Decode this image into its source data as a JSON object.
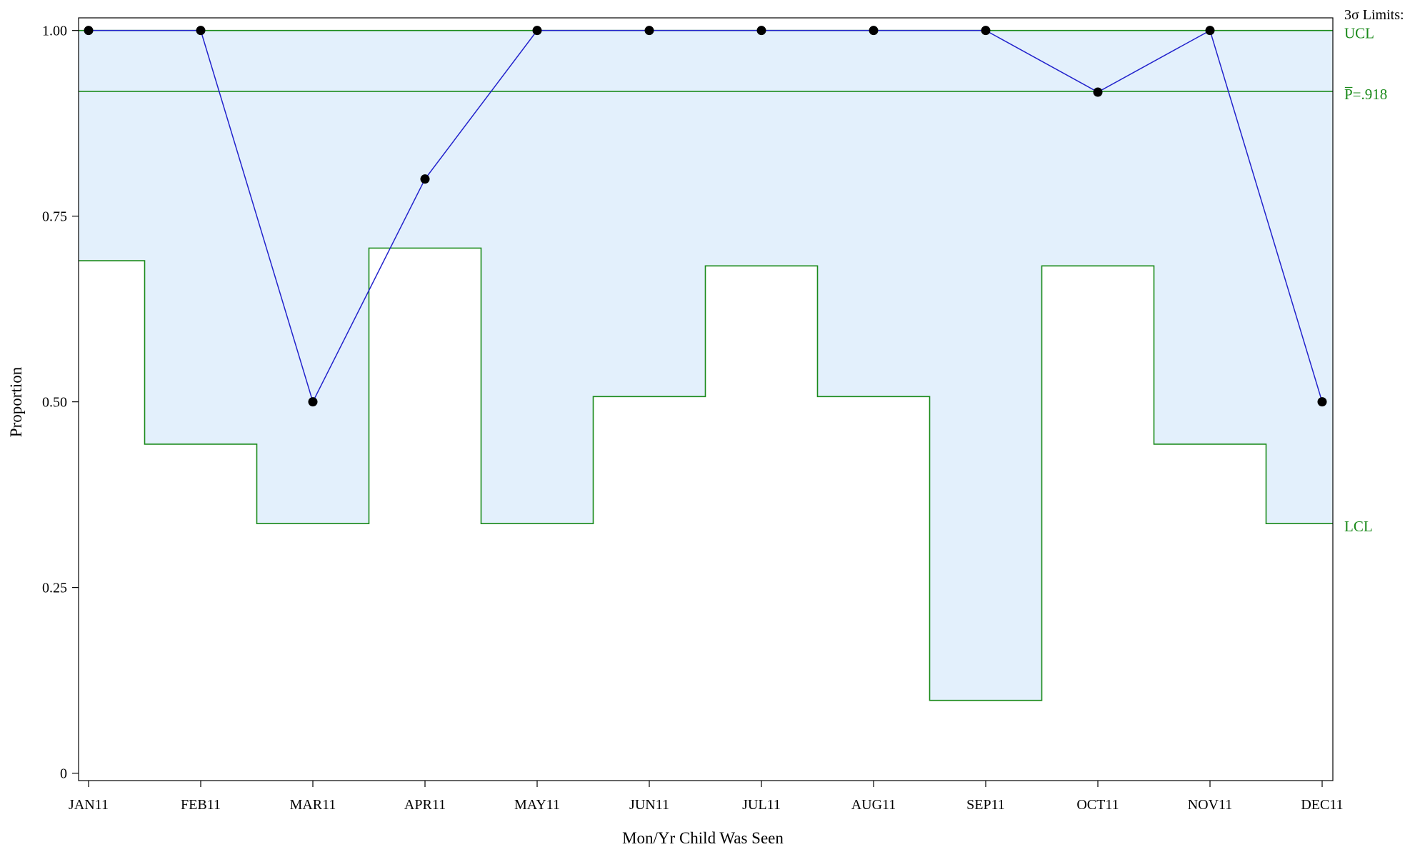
{
  "chart_data": {
    "type": "line",
    "subtype": "p-chart",
    "title": "",
    "xlabel": "Mon/Yr Child Was Seen",
    "ylabel": "Proportion",
    "categories": [
      "JAN11",
      "FEB11",
      "MAR11",
      "APR11",
      "MAY11",
      "JUN11",
      "JUL11",
      "AUG11",
      "SEP11",
      "OCT11",
      "NOV11",
      "DEC11"
    ],
    "series": [
      {
        "name": "",
        "values": [
          1.0,
          1.0,
          0.5,
          0.8,
          1.0,
          1.0,
          1.0,
          1.0,
          1.0,
          0.917,
          1.0,
          0.5
        ]
      }
    ],
    "ucl": [
      1.0,
      1.0,
      1.0,
      1.0,
      1.0,
      1.0,
      1.0,
      1.0,
      1.0,
      1.0,
      1.0,
      1.0
    ],
    "lcl": [
      0.69,
      0.443,
      0.336,
      0.707,
      0.336,
      0.507,
      0.683,
      0.507,
      0.098,
      0.683,
      0.443,
      0.336
    ],
    "center": 0.918,
    "ylim": [
      -0.01,
      1.017
    ],
    "yticks": [
      0,
      0.25,
      0.5,
      0.75,
      1.0
    ],
    "ytick_labels": [
      "0",
      "0.25",
      "0.50",
      "0.75",
      "1.00"
    ],
    "limits_title": "3σ Limits:",
    "labels": {
      "ucl": "UCL",
      "center": "P̅=.918",
      "lcl": "LCL"
    },
    "grid": false,
    "legend": "none",
    "colors": {
      "series_line": "#2222cc",
      "marker": "#000000",
      "limits": "#1a8a1a",
      "band_fill": "#e3f0fc",
      "frame": "#000000"
    }
  }
}
